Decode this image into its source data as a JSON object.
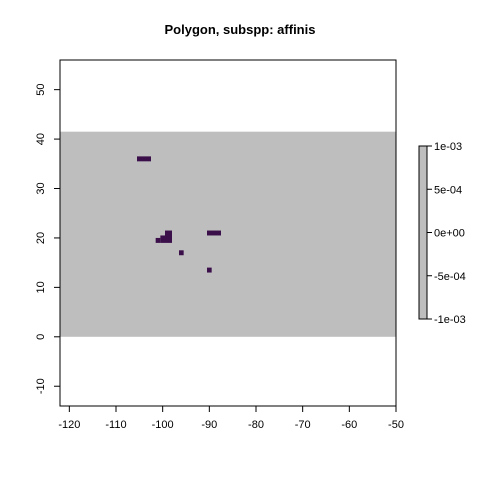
{
  "chart_data": {
    "type": "heatmap",
    "title": "Polygon, subspp: affinis",
    "xlabel": "",
    "ylabel": "",
    "xlim": [
      -122,
      -50
    ],
    "ylim": [
      -14,
      56
    ],
    "x_ticks": [
      -120,
      -110,
      -100,
      -90,
      -80,
      -70,
      -60,
      -50
    ],
    "y_ticks": [
      -10,
      0,
      10,
      20,
      30,
      40,
      50
    ],
    "grid": false,
    "background_extent": {
      "xmin": -122,
      "xmax": -50,
      "ymin": 0,
      "ymax": 41.5
    },
    "background_value": 0,
    "background_color": "#bebebe",
    "presence_color": "#3b0f4a",
    "presence_cells": [
      {
        "x0": -105.5,
        "x1": -102.5,
        "y0": 35.5,
        "y1": 36.5
      },
      {
        "x0": -101.5,
        "x1": -100.5,
        "y0": 19,
        "y1": 20
      },
      {
        "x0": -100.5,
        "x1": -99.5,
        "y0": 19,
        "y1": 20.5
      },
      {
        "x0": -99.5,
        "x1": -98,
        "y0": 19,
        "y1": 21.5
      },
      {
        "x0": -96.5,
        "x1": -95.5,
        "y0": 16.5,
        "y1": 17.5
      },
      {
        "x0": -90.5,
        "x1": -87.5,
        "y0": 20.5,
        "y1": 21.5
      },
      {
        "x0": -90.5,
        "x1": -89.5,
        "y0": 13,
        "y1": 14
      }
    ],
    "legend": {
      "position": "right",
      "ticks": [
        "1e-03",
        "5e-04",
        "0e+00",
        "-5e-04",
        "-1e-03"
      ],
      "range": [
        -0.001,
        0.001
      ],
      "color": "#bebebe"
    }
  }
}
